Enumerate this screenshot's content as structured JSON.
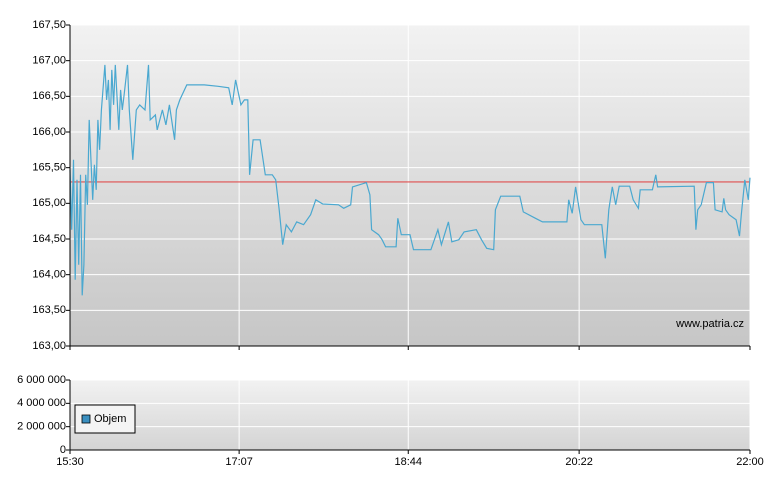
{
  "chart_data": [
    {
      "type": "line",
      "xlim": [
        "15:30",
        "22:00"
      ],
      "xticks": [
        "15:30",
        "17:07",
        "18:44",
        "20:22",
        "22:00"
      ],
      "ylim": [
        163,
        167.5
      ],
      "yticks": [
        {
          "value": 163,
          "label": "163,00"
        },
        {
          "value": 163.5,
          "label": "163,50"
        },
        {
          "value": 164,
          "label": "164,00"
        },
        {
          "value": 164.5,
          "label": "164,50"
        },
        {
          "value": 165,
          "label": "165,00"
        },
        {
          "value": 165.5,
          "label": "165,50"
        },
        {
          "value": 166,
          "label": "166,00"
        },
        {
          "value": 166.5,
          "label": "166,50"
        },
        {
          "value": 167,
          "label": "167,00"
        },
        {
          "value": 167.5,
          "label": "167,50"
        }
      ],
      "grid": true,
      "reference_line": {
        "value": 165.3,
        "color": "#e05050"
      },
      "watermark": "www.patria.cz",
      "series": [
        {
          "color": "#4aa8d0",
          "x": [
            "15:30",
            "15:31",
            "15:32",
            "15:33",
            "15:34",
            "15:35",
            "15:36",
            "15:37",
            "15:38",
            "15:39",
            "15:40",
            "15:41",
            "15:43",
            "15:44",
            "15:45",
            "15:46",
            "15:47",
            "15:48",
            "15:50",
            "15:51",
            "15:52",
            "15:53",
            "15:54",
            "15:55",
            "15:56",
            "15:58",
            "15:59",
            "16:00",
            "16:01",
            "16:03",
            "16:04",
            "16:06",
            "16:08",
            "16:10",
            "16:13",
            "16:15",
            "16:16",
            "16:19",
            "16:20",
            "16:23",
            "16:25",
            "16:27",
            "16:30",
            "16:31",
            "16:33",
            "16:37",
            "16:47",
            "16:55",
            "17:01",
            "17:03",
            "17:05",
            "17:08",
            "17:10",
            "17:12",
            "17:13",
            "17:15",
            "17:19",
            "17:22",
            "17:26",
            "17:28",
            "17:30",
            "17:32",
            "17:34",
            "17:37",
            "17:40",
            "17:44",
            "17:48",
            "17:51",
            "17:55",
            "18:04",
            "18:07",
            "18:11",
            "18:12",
            "18:20",
            "18:22",
            "18:23",
            "18:27",
            "18:29",
            "18:31",
            "18:37",
            "18:38",
            "18:40",
            "18:45",
            "18:47",
            "18:57",
            "18:59",
            "19:01",
            "19:03",
            "19:07",
            "19:09",
            "19:13",
            "19:16",
            "19:23",
            "19:26",
            "19:29",
            "19:33",
            "19:34",
            "19:37",
            "19:48",
            "19:50",
            "19:57",
            "20:01",
            "20:15",
            "20:16",
            "20:18",
            "20:20",
            "20:23",
            "20:25",
            "20:35",
            "20:37",
            "20:39",
            "20:41",
            "20:43",
            "20:45",
            "20:51",
            "20:53",
            "20:56",
            "20:57",
            "21:04",
            "21:06",
            "21:07",
            "21:28",
            "21:29",
            "21:30",
            "21:32",
            "21:35",
            "21:39",
            "21:40",
            "21:44",
            "21:45",
            "21:46",
            "21:48",
            "21:52",
            "21:54",
            "21:55",
            "21:57",
            "21:59",
            "22:00"
          ],
          "values": [
            165.47,
            164.63,
            165.61,
            163.93,
            165.33,
            164.14,
            165.4,
            163.71,
            164.14,
            165.4,
            164.98,
            166.17,
            165.05,
            165.54,
            165.19,
            166.17,
            165.75,
            166.31,
            166.94,
            166.45,
            166.73,
            166.03,
            166.87,
            166.38,
            166.94,
            166.03,
            166.59,
            166.31,
            166.52,
            166.94,
            166.31,
            165.61,
            166.31,
            166.38,
            166.31,
            166.94,
            166.17,
            166.24,
            166.03,
            166.31,
            166.1,
            166.38,
            165.89,
            166.31,
            166.45,
            166.66,
            166.66,
            166.64,
            166.62,
            166.38,
            166.73,
            166.38,
            166.45,
            166.45,
            165.4,
            165.89,
            165.89,
            165.4,
            165.4,
            165.33,
            164.91,
            164.42,
            164.7,
            164.6,
            164.74,
            164.7,
            164.84,
            165.05,
            164.99,
            164.98,
            164.93,
            164.98,
            165.23,
            165.29,
            165.12,
            164.63,
            164.56,
            164.49,
            164.39,
            164.39,
            164.79,
            164.56,
            164.56,
            164.35,
            164.35,
            164.49,
            164.63,
            164.42,
            164.74,
            164.46,
            164.49,
            164.6,
            164.63,
            164.49,
            164.37,
            164.35,
            164.91,
            165.1,
            165.1,
            164.88,
            164.79,
            164.74,
            164.74,
            165.05,
            164.86,
            165.23,
            164.77,
            164.7,
            164.7,
            164.23,
            164.91,
            165.23,
            164.98,
            165.24,
            165.24,
            165.05,
            164.93,
            165.19,
            165.19,
            165.4,
            165.23,
            165.24,
            164.63,
            164.91,
            164.98,
            165.29,
            165.29,
            164.91,
            164.88,
            165.07,
            164.91,
            164.84,
            164.77,
            164.54,
            164.84,
            165.33,
            165.05,
            165.36
          ]
        }
      ]
    },
    {
      "type": "bar",
      "xlim": [
        "15:30",
        "22:00"
      ],
      "xticks": [
        "15:30",
        "17:07",
        "18:44",
        "20:22",
        "22:00"
      ],
      "ylim": [
        0,
        6000000
      ],
      "yticks": [
        0,
        {
          "value": 2000000,
          "label": "2 000 000"
        },
        {
          "value": 4000000,
          "label": "4 000 000"
        },
        {
          "value": 6000000,
          "label": "6 000 000"
        }
      ],
      "grid": true,
      "legend": "left",
      "series": [
        {
          "name": "Objem",
          "color": "#3a8fc0",
          "x": [
            "15:30",
            "16:30"
          ],
          "values": [
            30000,
            20000
          ]
        }
      ]
    }
  ]
}
